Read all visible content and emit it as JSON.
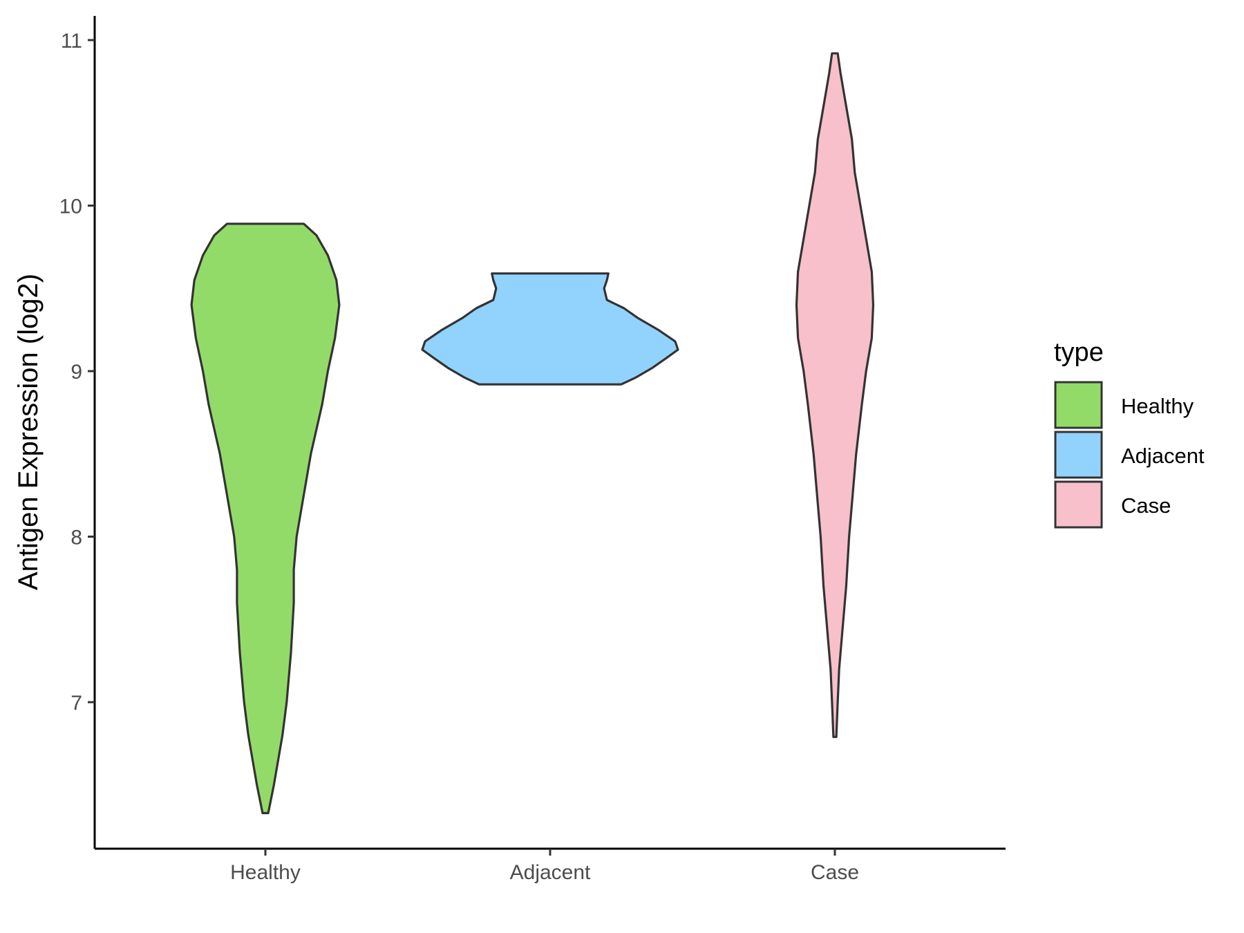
{
  "chart_data": {
    "type": "violin",
    "title": "",
    "xlabel": "",
    "ylabel": "Antigen Expression (log2)",
    "ylim": [
      6.2,
      11.15
    ],
    "yticks": [
      7,
      8,
      9,
      10,
      11
    ],
    "categories": [
      "Healthy",
      "Adjacent",
      "Case"
    ],
    "legend": {
      "title": "type",
      "position": "right",
      "entries": [
        {
          "label": "Healthy",
          "color": "#93DB69"
        },
        {
          "label": "Adjacent",
          "color": "#92D3FE"
        },
        {
          "label": "Case",
          "color": "#F7C0CB"
        }
      ]
    },
    "series": [
      {
        "name": "Healthy",
        "color": "#93DB69",
        "min": 6.33,
        "max": 9.89,
        "profile": [
          [
            6.33,
            0.01
          ],
          [
            6.5,
            0.03
          ],
          [
            6.8,
            0.06
          ],
          [
            7.0,
            0.075
          ],
          [
            7.3,
            0.09
          ],
          [
            7.6,
            0.1
          ],
          [
            7.8,
            0.1
          ],
          [
            8.0,
            0.11
          ],
          [
            8.2,
            0.13
          ],
          [
            8.5,
            0.16
          ],
          [
            8.8,
            0.2
          ],
          [
            9.0,
            0.22
          ],
          [
            9.2,
            0.245
          ],
          [
            9.4,
            0.26
          ],
          [
            9.55,
            0.25
          ],
          [
            9.7,
            0.22
          ],
          [
            9.82,
            0.18
          ],
          [
            9.89,
            0.135
          ]
        ]
      },
      {
        "name": "Adjacent",
        "color": "#92D3FE",
        "min": 8.92,
        "max": 9.59,
        "profile": [
          [
            8.92,
            0.25
          ],
          [
            8.96,
            0.3
          ],
          [
            9.02,
            0.36
          ],
          [
            9.08,
            0.41
          ],
          [
            9.13,
            0.45
          ],
          [
            9.18,
            0.44
          ],
          [
            9.25,
            0.38
          ],
          [
            9.32,
            0.31
          ],
          [
            9.38,
            0.26
          ],
          [
            9.43,
            0.2
          ],
          [
            9.5,
            0.19
          ],
          [
            9.55,
            0.2
          ],
          [
            9.59,
            0.205
          ]
        ]
      },
      {
        "name": "Case",
        "color": "#F7C0CB",
        "min": 6.79,
        "max": 10.92,
        "profile": [
          [
            6.79,
            0.005
          ],
          [
            7.0,
            0.01
          ],
          [
            7.2,
            0.015
          ],
          [
            7.5,
            0.03
          ],
          [
            7.7,
            0.04
          ],
          [
            8.0,
            0.05
          ],
          [
            8.2,
            0.06
          ],
          [
            8.5,
            0.075
          ],
          [
            8.8,
            0.095
          ],
          [
            9.0,
            0.11
          ],
          [
            9.2,
            0.13
          ],
          [
            9.4,
            0.135
          ],
          [
            9.6,
            0.13
          ],
          [
            9.8,
            0.11
          ],
          [
            10.0,
            0.09
          ],
          [
            10.2,
            0.07
          ],
          [
            10.4,
            0.06
          ],
          [
            10.6,
            0.04
          ],
          [
            10.8,
            0.02
          ],
          [
            10.92,
            0.01
          ]
        ]
      }
    ]
  }
}
